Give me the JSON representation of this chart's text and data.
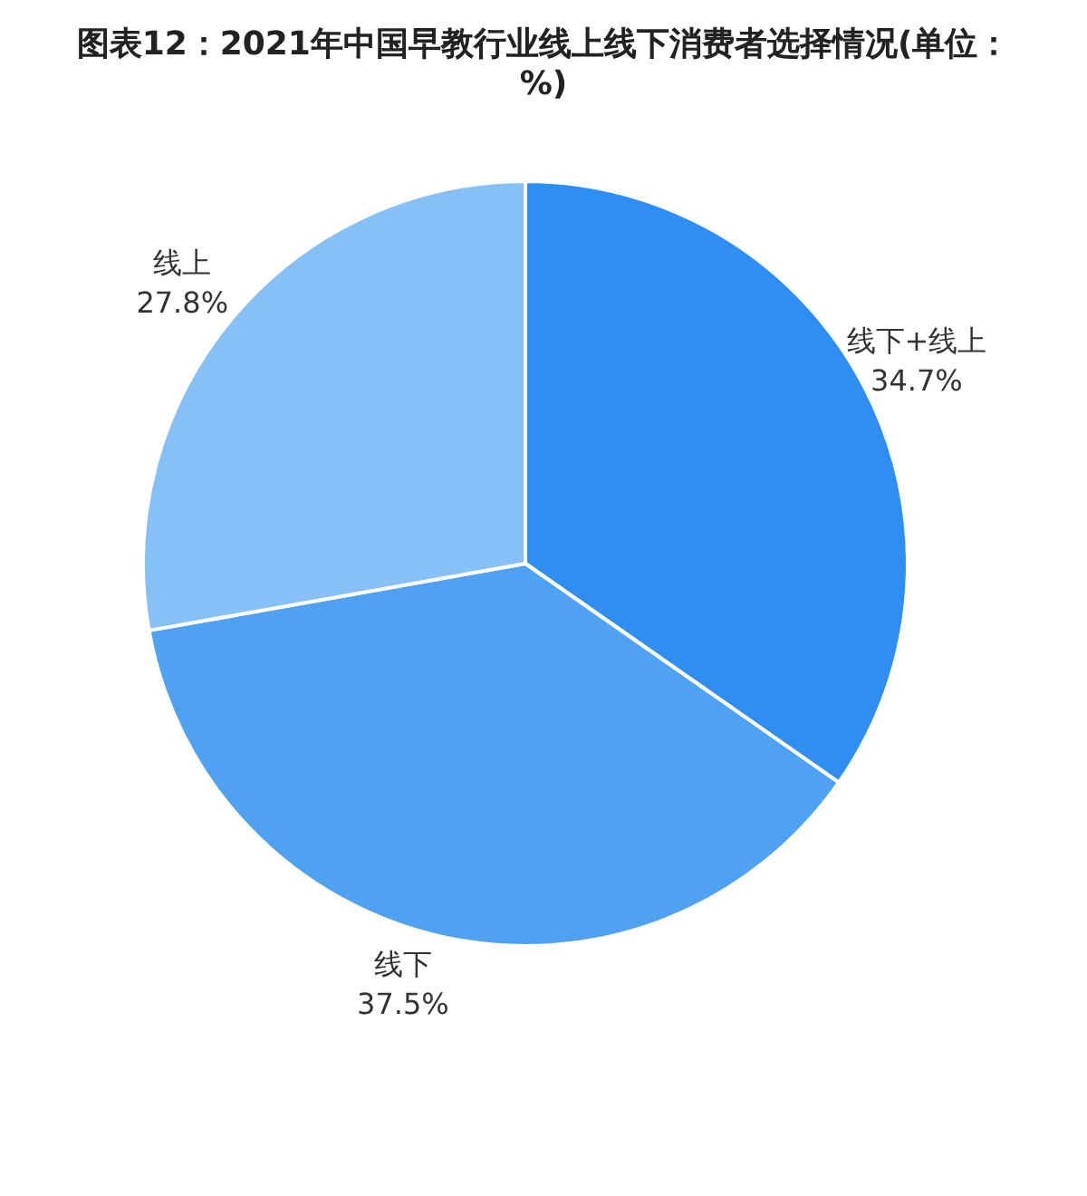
{
  "chart_data": {
    "type": "pie",
    "title": "图表12：2021年中国早教行业线上线下消费者选择情况(单位：%)",
    "categories": [
      "线下+线上",
      "线下",
      "线上"
    ],
    "values": [
      34.7,
      37.5,
      27.8
    ],
    "value_labels": [
      "34.7%",
      "37.5%",
      "27.8%"
    ],
    "colors": [
      "#2f8ef2",
      "#4fa2f2",
      "#87c0f6"
    ],
    "legend": false
  }
}
